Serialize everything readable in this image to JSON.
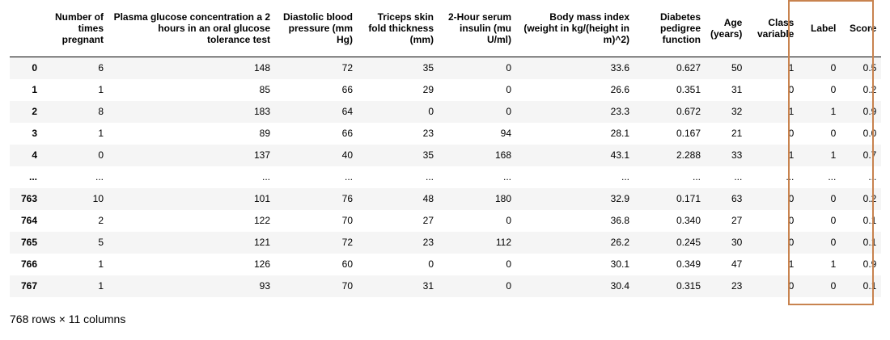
{
  "columns": {
    "index": "",
    "pregnant": "Number of times pregnant",
    "glucose": "Plasma glucose concentration a 2 hours in an oral glucose tolerance test",
    "bp": "Diastolic blood pressure (mm Hg)",
    "skin": "Triceps skin fold thickness (mm)",
    "insulin": "2-Hour serum insulin (mu U/ml)",
    "bmi": "Body mass index (weight in kg/(height in m)^2)",
    "pedigree": "Diabetes pedigree function",
    "age": "Age (years)",
    "class": "Class variable",
    "label": "Label",
    "score": "Score"
  },
  "rows": [
    {
      "index": "0",
      "pregnant": "6",
      "glucose": "148",
      "bp": "72",
      "skin": "35",
      "insulin": "0",
      "bmi": "33.6",
      "pedigree": "0.627",
      "age": "50",
      "class": "1",
      "label": "0",
      "score": "0.5"
    },
    {
      "index": "1",
      "pregnant": "1",
      "glucose": "85",
      "bp": "66",
      "skin": "29",
      "insulin": "0",
      "bmi": "26.6",
      "pedigree": "0.351",
      "age": "31",
      "class": "0",
      "label": "0",
      "score": "0.2"
    },
    {
      "index": "2",
      "pregnant": "8",
      "glucose": "183",
      "bp": "64",
      "skin": "0",
      "insulin": "0",
      "bmi": "23.3",
      "pedigree": "0.672",
      "age": "32",
      "class": "1",
      "label": "1",
      "score": "0.9"
    },
    {
      "index": "3",
      "pregnant": "1",
      "glucose": "89",
      "bp": "66",
      "skin": "23",
      "insulin": "94",
      "bmi": "28.1",
      "pedigree": "0.167",
      "age": "21",
      "class": "0",
      "label": "0",
      "score": "0.0"
    },
    {
      "index": "4",
      "pregnant": "0",
      "glucose": "137",
      "bp": "40",
      "skin": "35",
      "insulin": "168",
      "bmi": "43.1",
      "pedigree": "2.288",
      "age": "33",
      "class": "1",
      "label": "1",
      "score": "0.7"
    },
    {
      "index": "...",
      "pregnant": "...",
      "glucose": "...",
      "bp": "...",
      "skin": "...",
      "insulin": "...",
      "bmi": "...",
      "pedigree": "...",
      "age": "...",
      "class": "...",
      "label": "...",
      "score": "..."
    },
    {
      "index": "763",
      "pregnant": "10",
      "glucose": "101",
      "bp": "76",
      "skin": "48",
      "insulin": "180",
      "bmi": "32.9",
      "pedigree": "0.171",
      "age": "63",
      "class": "0",
      "label": "0",
      "score": "0.2"
    },
    {
      "index": "764",
      "pregnant": "2",
      "glucose": "122",
      "bp": "70",
      "skin": "27",
      "insulin": "0",
      "bmi": "36.8",
      "pedigree": "0.340",
      "age": "27",
      "class": "0",
      "label": "0",
      "score": "0.1"
    },
    {
      "index": "765",
      "pregnant": "5",
      "glucose": "121",
      "bp": "72",
      "skin": "23",
      "insulin": "112",
      "bmi": "26.2",
      "pedigree": "0.245",
      "age": "30",
      "class": "0",
      "label": "0",
      "score": "0.1"
    },
    {
      "index": "766",
      "pregnant": "1",
      "glucose": "126",
      "bp": "60",
      "skin": "0",
      "insulin": "0",
      "bmi": "30.1",
      "pedigree": "0.349",
      "age": "47",
      "class": "1",
      "label": "1",
      "score": "0.9"
    },
    {
      "index": "767",
      "pregnant": "1",
      "glucose": "93",
      "bp": "70",
      "skin": "31",
      "insulin": "0",
      "bmi": "30.4",
      "pedigree": "0.315",
      "age": "23",
      "class": "0",
      "label": "0",
      "score": "0.1"
    }
  ],
  "footer": "768 rows × 11 columns",
  "colors": {
    "highlight_border": "#c8834f",
    "stripe": "#f5f5f5"
  }
}
